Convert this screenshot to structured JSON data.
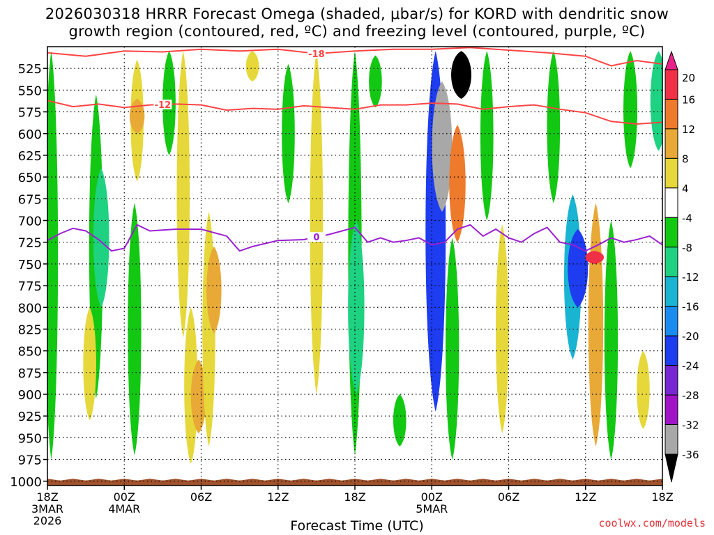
{
  "chart_data": {
    "type": "heatmap",
    "title_line1": "2026030318 HRRR Forecast Omega (shaded, μbar/s) for KORD with dendritic snow",
    "title_line2": "growth region (contoured, red, ºC) and freezing level (contoured, purple, ºC)",
    "xlabel": "Forecast Time (UTC)",
    "credit": "coolwx.com/models",
    "y_axis": {
      "ticks": [
        525,
        550,
        575,
        600,
        625,
        650,
        675,
        700,
        725,
        750,
        775,
        800,
        825,
        850,
        875,
        900,
        925,
        950,
        975,
        1000
      ],
      "range": [
        500,
        1005
      ],
      "units": "hPa"
    },
    "x_axis": {
      "range_hours": [
        0,
        48
      ],
      "ticks": [
        {
          "hour": 0,
          "label": "18Z",
          "sub": [
            "3MAR",
            "2026"
          ]
        },
        {
          "hour": 6,
          "label": "00Z",
          "sub": [
            "4MAR"
          ]
        },
        {
          "hour": 12,
          "label": "06Z",
          "sub": []
        },
        {
          "hour": 18,
          "label": "12Z",
          "sub": []
        },
        {
          "hour": 24,
          "label": "18Z",
          "sub": []
        },
        {
          "hour": 30,
          "label": "00Z",
          "sub": [
            "5MAR"
          ]
        },
        {
          "hour": 36,
          "label": "06Z",
          "sub": []
        },
        {
          "hour": 42,
          "label": "12Z",
          "sub": []
        },
        {
          "hour": 48,
          "label": "18Z",
          "sub": []
        }
      ]
    },
    "colorbar": {
      "labels": [
        20,
        16,
        12,
        8,
        4,
        -4,
        -8,
        -12,
        -16,
        -20,
        -24,
        -28,
        -32,
        -36
      ],
      "bins": [
        {
          "range": "16 to 20",
          "color": "#f03046"
        },
        {
          "range": "12 to 16",
          "color": "#ee7a2c"
        },
        {
          "range": "8 to 12",
          "color": "#e8a936"
        },
        {
          "range": "4 to 8",
          "color": "#e6d83a"
        },
        {
          "range": "-4 to 4",
          "color": "#ffffff"
        },
        {
          "range": "-8 to -4",
          "color": "#13c813"
        },
        {
          "range": "-12 to -8",
          "color": "#1ed282"
        },
        {
          "range": "-16 to -12",
          "color": "#19b4d2"
        },
        {
          "range": "-20 to -16",
          "color": "#1a8cf0"
        },
        {
          "range": "-24 to -20",
          "color": "#1e3cf0"
        },
        {
          "range": "-28 to -24",
          "color": "#7828d2"
        },
        {
          "range": "-32 to -28",
          "color": "#a014c8"
        },
        {
          "range": "-36 to -32",
          "color": "#a8a8a8"
        }
      ],
      "max_arrow_color": "#e8228a",
      "min_arrow_color": "#000000"
    },
    "omega_features": [
      {
        "hour": 0.3,
        "top": 505,
        "bottom": 975,
        "value": -6
      },
      {
        "hour": 3.8,
        "top": 555,
        "bottom": 905,
        "value": -7
      },
      {
        "hour": 4.2,
        "top": 640,
        "bottom": 800,
        "value": -11
      },
      {
        "hour": 3.3,
        "top": 800,
        "bottom": 930,
        "value": 5
      },
      {
        "hour": 7.0,
        "top": 515,
        "bottom": 655,
        "value": 5
      },
      {
        "hour": 7.0,
        "top": 560,
        "bottom": 600,
        "value": 9
      },
      {
        "hour": 6.8,
        "top": 680,
        "bottom": 970,
        "value": -6
      },
      {
        "hour": 9.5,
        "top": 505,
        "bottom": 625,
        "value": -5
      },
      {
        "hour": 10.6,
        "top": 505,
        "bottom": 835,
        "value": 5
      },
      {
        "hour": 11.2,
        "top": 800,
        "bottom": 980,
        "value": 6
      },
      {
        "hour": 11.8,
        "top": 860,
        "bottom": 945,
        "value": 10
      },
      {
        "hour": 12.6,
        "top": 690,
        "bottom": 960,
        "value": 5
      },
      {
        "hour": 13.0,
        "top": 730,
        "bottom": 830,
        "value": 9
      },
      {
        "hour": 16.0,
        "top": 505,
        "bottom": 540,
        "value": 5
      },
      {
        "hour": 18.8,
        "top": 520,
        "bottom": 680,
        "value": -5
      },
      {
        "hour": 21.0,
        "top": 505,
        "bottom": 900,
        "value": 5
      },
      {
        "hour": 24.0,
        "top": 505,
        "bottom": 970,
        "value": -6
      },
      {
        "hour": 24.1,
        "top": 700,
        "bottom": 900,
        "value": -12
      },
      {
        "hour": 25.6,
        "top": 510,
        "bottom": 570,
        "value": -5
      },
      {
        "hour": 27.5,
        "top": 900,
        "bottom": 960,
        "value": -5
      },
      {
        "hour": 30.3,
        "top": 505,
        "bottom": 920,
        "value": -22
      },
      {
        "hour": 30.8,
        "top": 540,
        "bottom": 690,
        "value": -34
      },
      {
        "hour": 32.3,
        "top": 505,
        "bottom": 560,
        "value": -36
      },
      {
        "hour": 32.0,
        "top": 590,
        "bottom": 725,
        "value": 12
      },
      {
        "hour": 31.6,
        "top": 720,
        "bottom": 975,
        "value": -6
      },
      {
        "hour": 34.3,
        "top": 505,
        "bottom": 700,
        "value": -5
      },
      {
        "hour": 35.5,
        "top": 705,
        "bottom": 945,
        "value": 5
      },
      {
        "hour": 39.5,
        "top": 505,
        "bottom": 680,
        "value": -5
      },
      {
        "hour": 41.0,
        "top": 670,
        "bottom": 860,
        "value": -14
      },
      {
        "hour": 41.4,
        "top": 710,
        "bottom": 800,
        "value": -21
      },
      {
        "hour": 42.8,
        "top": 680,
        "bottom": 960,
        "value": 9
      },
      {
        "hour": 42.7,
        "top": 735,
        "bottom": 750,
        "value": 17
      },
      {
        "hour": 44.0,
        "top": 700,
        "bottom": 975,
        "value": -6
      },
      {
        "hour": 45.5,
        "top": 505,
        "bottom": 640,
        "value": -7
      },
      {
        "hour": 47.7,
        "top": 505,
        "bottom": 620,
        "value": -12
      },
      {
        "hour": 46.5,
        "top": 850,
        "bottom": 940,
        "value": 5
      }
    ],
    "dendritic_contours": [
      {
        "value": -18,
        "label": "-18",
        "label_hour": 21.0,
        "points": [
          [
            0,
            507
          ],
          [
            3,
            511
          ],
          [
            6,
            505
          ],
          [
            9,
            506
          ],
          [
            12,
            503
          ],
          [
            15,
            505
          ],
          [
            18,
            503
          ],
          [
            21,
            508
          ],
          [
            24,
            505
          ],
          [
            27,
            503
          ],
          [
            30,
            503
          ],
          [
            33,
            501
          ],
          [
            36,
            504
          ],
          [
            39,
            507
          ],
          [
            42,
            511
          ],
          [
            44,
            522
          ],
          [
            46,
            516
          ],
          [
            48,
            520
          ]
        ]
      },
      {
        "value": -12,
        "label": "-12",
        "label_hour": 9.0,
        "points": [
          [
            0,
            562
          ],
          [
            2,
            569
          ],
          [
            4,
            566
          ],
          [
            6,
            570
          ],
          [
            8,
            567
          ],
          [
            10,
            566
          ],
          [
            12,
            567
          ],
          [
            14,
            573
          ],
          [
            16,
            571
          ],
          [
            18,
            572
          ],
          [
            20,
            568
          ],
          [
            22,
            570
          ],
          [
            24,
            572
          ],
          [
            26,
            567
          ],
          [
            28,
            567
          ],
          [
            30,
            565
          ],
          [
            32,
            566
          ],
          [
            34,
            572
          ],
          [
            36,
            569
          ],
          [
            38,
            567
          ],
          [
            40,
            572
          ],
          [
            42,
            576
          ],
          [
            44,
            586
          ],
          [
            46,
            589
          ],
          [
            48,
            587
          ]
        ]
      }
    ],
    "freezing_level": {
      "value": 0,
      "label": "0",
      "label_hour": 21.0,
      "points": [
        [
          0,
          723
        ],
        [
          1,
          715
        ],
        [
          2,
          709
        ],
        [
          3,
          712
        ],
        [
          4,
          722
        ],
        [
          5,
          735
        ],
        [
          6,
          732
        ],
        [
          7,
          705
        ],
        [
          8,
          712
        ],
        [
          10,
          710
        ],
        [
          12,
          710
        ],
        [
          14,
          718
        ],
        [
          15,
          735
        ],
        [
          16,
          730
        ],
        [
          18,
          723
        ],
        [
          20,
          722
        ],
        [
          22,
          716
        ],
        [
          24,
          708
        ],
        [
          25,
          725
        ],
        [
          26,
          720
        ],
        [
          27,
          725
        ],
        [
          28,
          723
        ],
        [
          29,
          720
        ],
        [
          30,
          728
        ],
        [
          31,
          725
        ],
        [
          32,
          710
        ],
        [
          33,
          705
        ],
        [
          34,
          718
        ],
        [
          35,
          710
        ],
        [
          36,
          720
        ],
        [
          37,
          725
        ],
        [
          38,
          715
        ],
        [
          39,
          708
        ],
        [
          40,
          725
        ],
        [
          41,
          728
        ],
        [
          42,
          735
        ],
        [
          43,
          728
        ],
        [
          44,
          720
        ],
        [
          45,
          725
        ],
        [
          46,
          722
        ],
        [
          47,
          718
        ],
        [
          48,
          728
        ]
      ]
    },
    "surface_fill_color": "#a0522d",
    "contour_colors": {
      "dendritic": "#ff4444",
      "freezing": "#9b1fd1"
    }
  }
}
